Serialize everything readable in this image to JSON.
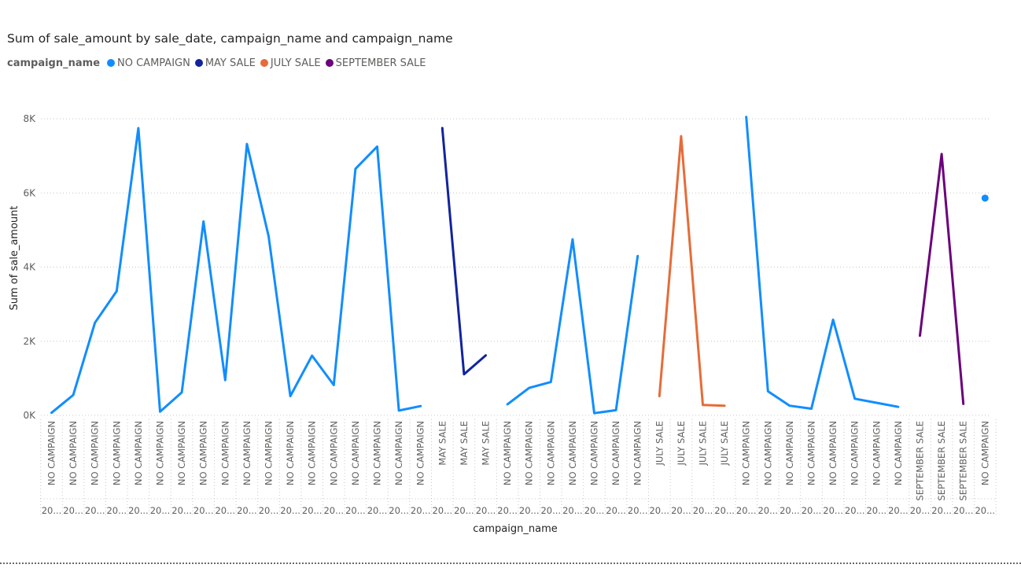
{
  "chart_data": {
    "type": "line",
    "title": "Sum of sale_amount by sale_date, campaign_name and campaign_name",
    "legend_title": "campaign_name",
    "legend_position": "top-left",
    "xlabel": "campaign_name",
    "ylabel": "Sum of sale_amount",
    "ylim": [
      0,
      8000
    ],
    "yticks": [
      {
        "value": 0,
        "label": "0K"
      },
      {
        "value": 2000,
        "label": "2K"
      },
      {
        "value": 4000,
        "label": "4K"
      },
      {
        "value": 6000,
        "label": "6K"
      },
      {
        "value": 8000,
        "label": "8K"
      }
    ],
    "grid": true,
    "categories": [
      "NO CAMPAIGN",
      "NO CAMPAIGN",
      "NO CAMPAIGN",
      "NO CAMPAIGN",
      "NO CAMPAIGN",
      "NO CAMPAIGN",
      "NO CAMPAIGN",
      "NO CAMPAIGN",
      "NO CAMPAIGN",
      "NO CAMPAIGN",
      "NO CAMPAIGN",
      "NO CAMPAIGN",
      "NO CAMPAIGN",
      "NO CAMPAIGN",
      "NO CAMPAIGN",
      "NO CAMPAIGN",
      "NO CAMPAIGN",
      "NO CAMPAIGN",
      "MAY SALE",
      "MAY SALE",
      "MAY SALE",
      "NO CAMPAIGN",
      "NO CAMPAIGN",
      "NO CAMPAIGN",
      "NO CAMPAIGN",
      "NO CAMPAIGN",
      "NO CAMPAIGN",
      "NO CAMPAIGN",
      "JULY SALE",
      "JULY SALE",
      "JULY SALE",
      "JULY SALE",
      "NO CAMPAIGN",
      "NO CAMPAIGN",
      "NO CAMPAIGN",
      "NO CAMPAIGN",
      "NO CAMPAIGN",
      "NO CAMPAIGN",
      "NO CAMPAIGN",
      "NO CAMPAIGN",
      "SEPTEMBER SALE",
      "SEPTEMBER SALE",
      "SEPTEMBER SALE",
      "NO CAMPAIGN"
    ],
    "date_labels": [
      "20...",
      "20...",
      "20...",
      "20...",
      "20...",
      "20...",
      "20...",
      "20...",
      "20...",
      "20...",
      "20...",
      "20...",
      "20...",
      "20...",
      "20...",
      "20...",
      "20...",
      "20...",
      "20...",
      "20...",
      "20...",
      "20...",
      "20...",
      "20...",
      "20...",
      "20...",
      "20...",
      "20...",
      "20...",
      "20...",
      "20...",
      "20...",
      "20...",
      "20...",
      "20...",
      "20...",
      "20...",
      "20...",
      "20...",
      "20...",
      "20...",
      "20...",
      "20...",
      "20..."
    ],
    "series": [
      {
        "name": "NO CAMPAIGN",
        "color": "#118DFF",
        "segments": [
          {
            "start": 0,
            "values": [
              70,
              550,
              2500,
              3350,
              7750,
              100,
              620,
              5230,
              950,
              7320,
              4830,
              520,
              1610,
              820,
              6650,
              7250,
              130,
              250
            ]
          },
          {
            "start": 21,
            "values": [
              300,
              740,
              900,
              4750,
              60,
              140,
              4300
            ]
          },
          {
            "start": 32,
            "values": [
              8050,
              650,
              260,
              180,
              2580,
              450,
              340,
              230
            ]
          },
          {
            "start": 43,
            "values": [
              5860
            ]
          }
        ]
      },
      {
        "name": "MAY SALE",
        "color": "#12239E",
        "segments": [
          {
            "start": 18,
            "values": [
              7750,
              1110,
              1620
            ]
          }
        ]
      },
      {
        "name": "JULY SALE",
        "color": "#E66C37",
        "segments": [
          {
            "start": 28,
            "values": [
              520,
              7530,
              280,
              260
            ]
          }
        ]
      },
      {
        "name": "SEPTEMBER SALE",
        "color": "#6B007B",
        "segments": [
          {
            "start": 40,
            "values": [
              2150,
              7050,
              310
            ]
          }
        ]
      }
    ]
  }
}
